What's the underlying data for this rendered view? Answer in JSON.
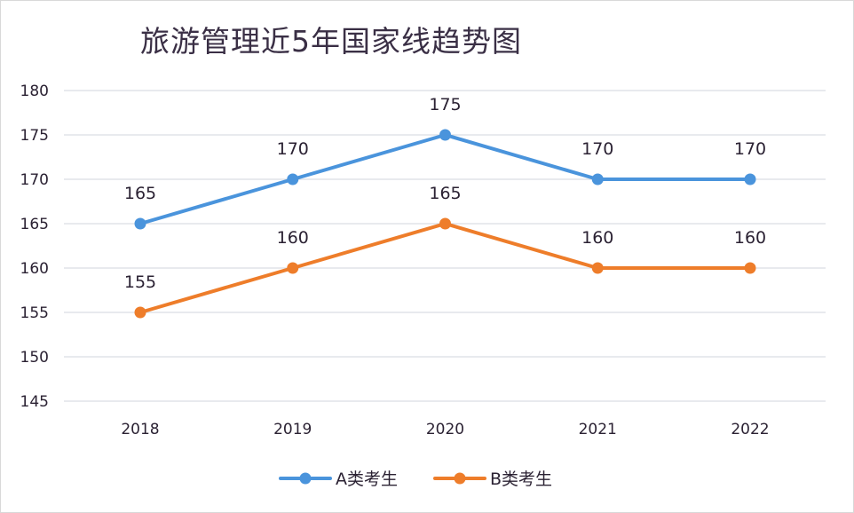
{
  "chart_data": {
    "type": "line",
    "title": "旅游管理近5年国家线趋势图",
    "xlabel": "",
    "ylabel": "",
    "categories": [
      "2018",
      "2019",
      "2020",
      "2021",
      "2022"
    ],
    "ylim": [
      145,
      180
    ],
    "yticks": [
      145,
      150,
      155,
      160,
      165,
      170,
      175,
      180
    ],
    "grid": true,
    "legend_position": "bottom",
    "data_labels": true,
    "series": [
      {
        "name": "A类考生",
        "color": "#4a94dc",
        "values": [
          165,
          170,
          175,
          170,
          170
        ]
      },
      {
        "name": "B类考生",
        "color": "#ee7d2a",
        "values": [
          155,
          160,
          165,
          160,
          160
        ]
      }
    ]
  }
}
